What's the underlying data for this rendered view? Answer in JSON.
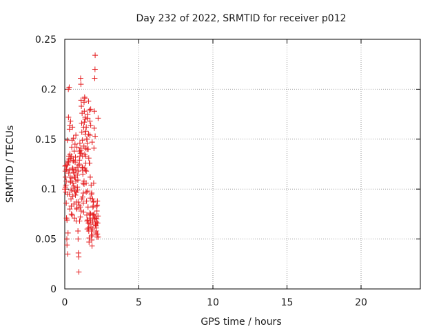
{
  "chart_data": {
    "type": "scatter",
    "title": "Day 232 of 2022, SRMTID for receiver p012",
    "xlabel": "GPS time / hours",
    "ylabel": "SRMTID / TECUs",
    "xlim": [
      0,
      24
    ],
    "ylim": [
      0,
      0.25
    ],
    "xticks": [
      0,
      5,
      10,
      15,
      20
    ],
    "yticks": [
      0,
      0.05,
      0.1,
      0.15,
      0.2,
      0.25
    ],
    "xtick_labels": [
      "0",
      "5",
      "10",
      "15",
      "20"
    ],
    "ytick_labels": [
      "0",
      "0.05",
      "0.1",
      "0.15",
      "0.2",
      "0.25"
    ],
    "grid": true,
    "marker": "+",
    "color": "#e41a1c",
    "series": [
      {
        "name": "p012",
        "x": [
          0.0,
          0.02,
          0.04,
          0.05,
          0.07,
          0.09,
          0.1,
          0.12,
          0.14,
          0.15,
          0.17,
          0.19,
          0.2,
          0.22,
          0.24,
          0.25,
          0.27,
          0.29,
          0.3,
          0.32,
          0.34,
          0.35,
          0.37,
          0.39,
          0.4,
          0.42,
          0.44,
          0.45,
          0.47,
          0.49,
          0.5,
          0.52,
          0.54,
          0.55,
          0.57,
          0.59,
          0.6,
          0.62,
          0.64,
          0.65,
          0.67,
          0.69,
          0.7,
          0.72,
          0.74,
          0.75,
          0.77,
          0.79,
          0.8,
          0.82,
          0.84,
          0.85,
          0.87,
          0.89,
          0.9,
          0.92,
          0.94,
          0.95,
          0.97,
          0.99,
          1.0,
          1.02,
          1.04,
          1.05,
          1.07,
          1.09,
          1.1,
          1.12,
          1.14,
          1.15,
          1.17,
          1.19,
          1.2,
          1.22,
          1.24,
          1.25,
          1.27,
          1.29,
          1.3,
          1.32,
          1.34,
          1.35,
          1.37,
          1.39,
          1.4,
          1.42,
          1.44,
          1.45,
          1.47,
          1.49,
          1.5,
          1.52,
          1.54,
          1.55,
          1.57,
          1.59,
          1.6,
          1.62,
          1.64,
          1.65,
          1.67,
          1.69,
          1.7,
          1.72,
          1.74,
          1.75,
          1.77,
          1.79,
          1.8,
          1.82,
          1.84,
          1.85,
          1.87,
          1.89,
          1.9,
          1.92,
          1.94,
          1.95,
          1.97,
          1.99,
          2.0,
          2.02,
          2.04,
          2.05,
          2.07,
          2.09,
          2.1,
          2.12,
          2.14,
          2.15,
          2.17,
          2.19,
          2.2,
          2.22,
          2.24,
          2.25,
          0.05,
          0.08,
          0.12,
          0.18,
          0.22,
          0.28,
          0.32,
          0.38,
          0.42,
          0.48,
          0.52,
          0.58,
          0.62,
          0.68,
          0.72,
          0.78,
          0.82,
          0.88,
          0.92,
          0.98,
          1.02,
          1.08,
          1.12,
          1.18,
          1.22,
          1.28,
          1.32,
          1.38,
          1.42,
          1.48,
          1.52,
          1.58,
          1.62,
          1.68,
          1.72,
          1.78,
          1.82,
          1.88,
          1.92,
          1.98,
          2.02,
          2.08,
          2.12,
          2.18,
          0.1,
          0.2,
          0.3,
          0.4,
          0.5,
          0.6,
          0.7,
          0.8,
          0.9,
          1.0,
          1.1,
          1.2,
          1.3,
          1.4,
          1.5,
          1.6,
          1.7,
          1.8,
          1.9,
          2.0,
          2.1,
          2.2,
          0.15,
          0.35,
          0.55,
          0.75,
          0.95,
          1.15,
          1.35,
          1.55,
          1.75,
          1.95,
          2.15,
          0.25,
          0.45,
          0.65,
          0.85,
          1.05,
          1.25,
          1.45,
          1.65,
          1.85,
          2.05,
          2.25,
          1.1,
          1.2,
          1.3,
          1.35,
          1.4,
          1.45,
          1.5,
          1.55,
          1.6,
          1.65,
          1.7,
          1.75
        ],
        "y": [
          0.1,
          0.123,
          0.118,
          0.102,
          0.097,
          0.124,
          0.086,
          0.071,
          0.05,
          0.044,
          0.149,
          0.124,
          0.035,
          0.056,
          0.2,
          0.172,
          0.116,
          0.13,
          0.202,
          0.16,
          0.08,
          0.135,
          0.112,
          0.168,
          0.108,
          0.09,
          0.083,
          0.133,
          0.142,
          0.099,
          0.074,
          0.162,
          0.093,
          0.106,
          0.128,
          0.151,
          0.117,
          0.085,
          0.138,
          0.112,
          0.098,
          0.145,
          0.112,
          0.132,
          0.119,
          0.108,
          0.068,
          0.097,
          0.081,
          0.142,
          0.122,
          0.114,
          0.099,
          0.058,
          0.05,
          0.036,
          0.032,
          0.017,
          0.084,
          0.129,
          0.138,
          0.146,
          0.082,
          0.072,
          0.211,
          0.205,
          0.189,
          0.183,
          0.166,
          0.157,
          0.176,
          0.149,
          0.133,
          0.121,
          0.106,
          0.086,
          0.077,
          0.143,
          0.187,
          0.167,
          0.192,
          0.191,
          0.172,
          0.155,
          0.133,
          0.126,
          0.106,
          0.097,
          0.088,
          0.074,
          0.068,
          0.06,
          0.069,
          0.098,
          0.082,
          0.066,
          0.061,
          0.058,
          0.047,
          0.051,
          0.071,
          0.065,
          0.076,
          0.091,
          0.075,
          0.069,
          0.062,
          0.058,
          0.053,
          0.049,
          0.043,
          0.054,
          0.06,
          0.067,
          0.074,
          0.088,
          0.087,
          0.106,
          0.141,
          0.161,
          0.178,
          0.211,
          0.22,
          0.234,
          0.065,
          0.071,
          0.056,
          0.061,
          0.067,
          0.07,
          0.078,
          0.084,
          0.088,
          0.066,
          0.073,
          0.052,
          0.112,
          0.104,
          0.12,
          0.095,
          0.128,
          0.133,
          0.119,
          0.107,
          0.099,
          0.111,
          0.121,
          0.129,
          0.116,
          0.101,
          0.094,
          0.087,
          0.08,
          0.109,
          0.118,
          0.125,
          0.133,
          0.141,
          0.136,
          0.122,
          0.115,
          0.162,
          0.178,
          0.17,
          0.158,
          0.15,
          0.146,
          0.14,
          0.131,
          0.126,
          0.112,
          0.104,
          0.096,
          0.09,
          0.083,
          0.075,
          0.07,
          0.064,
          0.058,
          0.052,
          0.108,
          0.125,
          0.095,
          0.131,
          0.149,
          0.103,
          0.127,
          0.097,
          0.087,
          0.068,
          0.078,
          0.092,
          0.105,
          0.119,
          0.14,
          0.155,
          0.168,
          0.095,
          0.082,
          0.071,
          0.063,
          0.055,
          0.069,
          0.164,
          0.12,
          0.154,
          0.124,
          0.09,
          0.135,
          0.171,
          0.18,
          0.074,
          0.083,
          0.127,
          0.075,
          0.071,
          0.102,
          0.136,
          0.096,
          0.118,
          0.126,
          0.147,
          0.153,
          0.171,
          0.139,
          0.119,
          0.108,
          0.121,
          0.141,
          0.162,
          0.15,
          0.175,
          0.188,
          0.179,
          0.154,
          0.164
        ]
      }
    ]
  }
}
